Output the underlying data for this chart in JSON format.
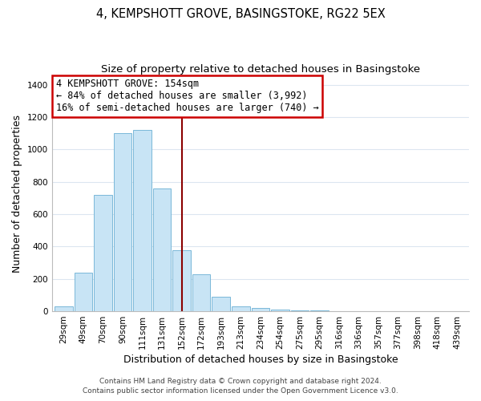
{
  "title_line1": "4, KEMPSHOTT GROVE, BASINGSTOKE, RG22 5EX",
  "title_line2": "Size of property relative to detached houses in Basingstoke",
  "xlabel": "Distribution of detached houses by size in Basingstoke",
  "ylabel": "Number of detached properties",
  "categories": [
    "29sqm",
    "49sqm",
    "70sqm",
    "90sqm",
    "111sqm",
    "131sqm",
    "152sqm",
    "172sqm",
    "193sqm",
    "213sqm",
    "234sqm",
    "254sqm",
    "275sqm",
    "295sqm",
    "316sqm",
    "336sqm",
    "357sqm",
    "377sqm",
    "398sqm",
    "418sqm",
    "439sqm"
  ],
  "values": [
    30,
    240,
    720,
    1100,
    1120,
    760,
    375,
    228,
    90,
    30,
    20,
    10,
    5,
    3,
    2,
    1,
    0,
    0,
    0,
    0,
    0
  ],
  "bar_color": "#c8e4f5",
  "bar_edge_color": "#7ab8d8",
  "annotation_line1": "4 KEMPSHOTT GROVE: 154sqm",
  "annotation_line2": "← 84% of detached houses are smaller (3,992)",
  "annotation_line3": "16% of semi-detached houses are larger (740) →",
  "annotation_box_edge_color": "#cc0000",
  "annotation_box_face_color": "#ffffff",
  "vline_color": "#8b0000",
  "vline_x": 6.0,
  "ylim": [
    0,
    1450
  ],
  "yticks": [
    0,
    200,
    400,
    600,
    800,
    1000,
    1200,
    1400
  ],
  "footer_line1": "Contains HM Land Registry data © Crown copyright and database right 2024.",
  "footer_line2": "Contains public sector information licensed under the Open Government Licence v3.0.",
  "background_color": "#ffffff",
  "grid_color": "#dce6f0",
  "title_fontsize": 10.5,
  "subtitle_fontsize": 9.5,
  "axis_label_fontsize": 9,
  "tick_fontsize": 7.5,
  "footer_fontsize": 6.5
}
